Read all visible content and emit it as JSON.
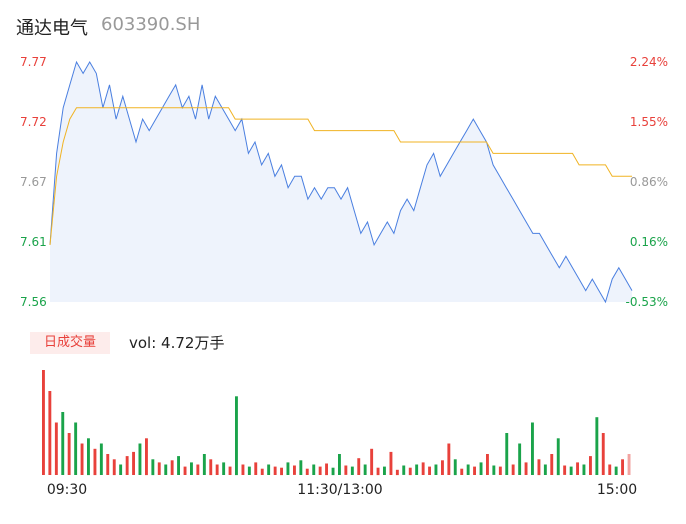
{
  "header": {
    "name": "通达电气",
    "code": "603390.SH"
  },
  "volume_header": {
    "period_label": "日成交量",
    "vol_text": "vol: 4.72万手"
  },
  "colors": {
    "price": "#4a7fe0",
    "avg": "#f0b323",
    "up": "#e8413b",
    "down": "#1aa34a",
    "neutral": "#999999",
    "fill": "#eef3fc"
  },
  "chart_data": {
    "type": "line",
    "title": "",
    "x_ticks": [
      "09:30",
      "11:30/13:00",
      "15:00"
    ],
    "ylim": [
      7.56,
      7.77
    ],
    "y_ticks_left": [
      "7.77",
      "7.72",
      "7.67",
      "7.61",
      "7.56"
    ],
    "y_ticks_right": [
      "2.24%",
      "1.55%",
      "0.86%",
      "0.16%",
      "-0.53%"
    ],
    "grid": false,
    "series": [
      {
        "name": "",
        "values": [
          7.61,
          7.69,
          7.73,
          7.75,
          7.77,
          7.76,
          7.77,
          7.76,
          7.73,
          7.75,
          7.72,
          7.74,
          7.72,
          7.7,
          7.72,
          7.71,
          7.72,
          7.73,
          7.74,
          7.75,
          7.73,
          7.74,
          7.72,
          7.75,
          7.72,
          7.74,
          7.73,
          7.72,
          7.71,
          7.72,
          7.69,
          7.7,
          7.68,
          7.69,
          7.67,
          7.68,
          7.66,
          7.67,
          7.67,
          7.65,
          7.66,
          7.65,
          7.66,
          7.66,
          7.65,
          7.66,
          7.64,
          7.62,
          7.63,
          7.61,
          7.62,
          7.63,
          7.62,
          7.64,
          7.65,
          7.64,
          7.66,
          7.68,
          7.69,
          7.67,
          7.68,
          7.69,
          7.7,
          7.71,
          7.72,
          7.71,
          7.7,
          7.68,
          7.67,
          7.66,
          7.65,
          7.64,
          7.63,
          7.62,
          7.62,
          7.61,
          7.6,
          7.59,
          7.6,
          7.59,
          7.58,
          7.57,
          7.58,
          7.57,
          7.56,
          7.58,
          7.59,
          7.58,
          7.57
        ]
      },
      {
        "name": "",
        "values": [
          7.61,
          7.67,
          7.7,
          7.72,
          7.73,
          7.73,
          7.73,
          7.73,
          7.73,
          7.73,
          7.73,
          7.73,
          7.73,
          7.73,
          7.73,
          7.73,
          7.73,
          7.73,
          7.73,
          7.73,
          7.73,
          7.73,
          7.73,
          7.73,
          7.73,
          7.73,
          7.73,
          7.73,
          7.72,
          7.72,
          7.72,
          7.72,
          7.72,
          7.72,
          7.72,
          7.72,
          7.72,
          7.72,
          7.72,
          7.72,
          7.71,
          7.71,
          7.71,
          7.71,
          7.71,
          7.71,
          7.71,
          7.71,
          7.71,
          7.71,
          7.71,
          7.71,
          7.71,
          7.7,
          7.7,
          7.7,
          7.7,
          7.7,
          7.7,
          7.7,
          7.7,
          7.7,
          7.7,
          7.7,
          7.7,
          7.7,
          7.7,
          7.69,
          7.69,
          7.69,
          7.69,
          7.69,
          7.69,
          7.69,
          7.69,
          7.69,
          7.69,
          7.69,
          7.69,
          7.69,
          7.68,
          7.68,
          7.68,
          7.68,
          7.68,
          7.67,
          7.67,
          7.67,
          7.67
        ]
      }
    ],
    "volume": {
      "values": [
        100,
        80,
        50,
        60,
        40,
        50,
        30,
        35,
        25,
        30,
        20,
        15,
        10,
        18,
        22,
        30,
        35,
        15,
        12,
        10,
        14,
        18,
        8,
        12,
        10,
        20,
        15,
        10,
        12,
        8,
        75,
        10,
        8,
        12,
        6,
        10,
        8,
        7,
        12,
        9,
        14,
        6,
        10,
        8,
        11,
        7,
        20,
        9,
        8,
        16,
        10,
        25,
        7,
        8,
        22,
        5,
        9,
        7,
        10,
        12,
        8,
        10,
        14,
        30,
        15,
        6,
        10,
        8,
        12,
        20,
        9,
        8,
        40,
        10,
        30,
        12,
        50,
        15,
        10,
        20,
        35,
        9,
        8,
        12,
        10,
        18,
        55,
        40,
        10,
        8,
        15,
        20
      ],
      "directions": [
        "u",
        "u",
        "u",
        "d",
        "u",
        "d",
        "u",
        "d",
        "u",
        "d",
        "u",
        "u",
        "d",
        "u",
        "u",
        "d",
        "u",
        "d",
        "u",
        "d",
        "u",
        "d",
        "u",
        "d",
        "u",
        "d",
        "u",
        "u",
        "d",
        "u",
        "d",
        "u",
        "d",
        "u",
        "u",
        "d",
        "u",
        "u",
        "d",
        "u",
        "d",
        "u",
        "d",
        "u",
        "u",
        "d",
        "d",
        "u",
        "d",
        "u",
        "d",
        "u",
        "u",
        "d",
        "u",
        "u",
        "d",
        "u",
        "d",
        "u",
        "u",
        "d",
        "u",
        "u",
        "d",
        "u",
        "d",
        "u",
        "d",
        "u",
        "d",
        "u",
        "d",
        "u",
        "d",
        "u",
        "d",
        "u",
        "d",
        "u",
        "d",
        "u",
        "d",
        "u",
        "d",
        "u",
        "d",
        "u",
        "u",
        "d",
        "u",
        "u"
      ]
    }
  }
}
